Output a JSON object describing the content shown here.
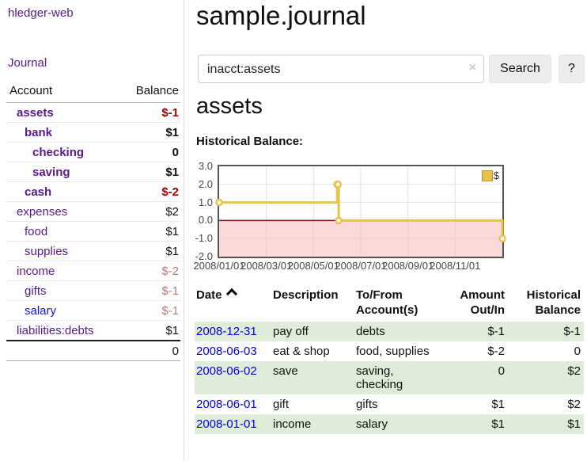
{
  "app": {
    "title": "hledger-web"
  },
  "colors": {
    "purple": "#551a8b",
    "blue": "#1414d6",
    "date_blue": "#0000e0",
    "negative": "#a40000",
    "negative_muted": "#b97a7a",
    "row_stripe": "#dfecd9",
    "chart_line": "#e9c248",
    "chart_negative_region": "#f6b9b9",
    "chart_zero_line": "#7d1010",
    "chart_grid": "#e2e2e2"
  },
  "sidebar": {
    "journal_link": "Journal",
    "accounts_table": {
      "account_header": "Account",
      "balance_header": "Balance",
      "rows": [
        {
          "account": "assets",
          "balance": "$-1",
          "level": 1,
          "bold": true,
          "link_color": "purple",
          "balance_color": "negative"
        },
        {
          "account": "bank",
          "balance": "$1",
          "level": 2,
          "bold": true,
          "link_color": "purple",
          "balance_color": "normal"
        },
        {
          "account": "checking",
          "balance": "0",
          "level": 3,
          "bold": true,
          "link_color": "purple",
          "balance_color": "normal"
        },
        {
          "account": "saving",
          "balance": "$1",
          "level": 3,
          "bold": true,
          "link_color": "purple",
          "balance_color": "normal"
        },
        {
          "account": "cash",
          "balance": "$-2",
          "level": 2,
          "bold": true,
          "link_color": "purple",
          "balance_color": "negative"
        },
        {
          "account": "expenses",
          "balance": "$2",
          "level": 1,
          "bold": false,
          "link_color": "purple",
          "balance_color": "normal"
        },
        {
          "account": "food",
          "balance": "$1",
          "level": 2,
          "bold": false,
          "link_color": "purple",
          "balance_color": "normal"
        },
        {
          "account": "supplies",
          "balance": "$1",
          "level": 2,
          "bold": false,
          "link_color": "purple",
          "balance_color": "normal"
        },
        {
          "account": "income",
          "balance": "$-2",
          "level": 1,
          "bold": false,
          "link_color": "purple",
          "balance_color": "negative-muted"
        },
        {
          "account": "gifts",
          "balance": "$-1",
          "level": 2,
          "bold": false,
          "link_color": "purple",
          "balance_color": "negative-muted"
        },
        {
          "account": "salary",
          "balance": "$-1",
          "level": 2,
          "bold": false,
          "link_color": "blue",
          "balance_color": "negative-muted"
        },
        {
          "account": "liabilities:debts",
          "balance": "$1",
          "level": 1,
          "bold": false,
          "link_color": "purple",
          "balance_color": "normal"
        }
      ],
      "total": "0"
    }
  },
  "main": {
    "page_title": "sample.journal",
    "search": {
      "value": "inacct:assets",
      "clear_icon": "×",
      "search_button": "Search",
      "help_button": "?"
    },
    "account_heading": "assets",
    "chart_title": "Historical Balance:",
    "register": {
      "headers": {
        "date": "Date",
        "sort_icon": "chevron-up",
        "description": "Description",
        "tofrom": "To/From Account(s)",
        "amount": "Amount Out/In",
        "balance": "Historical Balance"
      },
      "rows": [
        {
          "date": "2008-12-31",
          "description": "pay off",
          "accounts": "debts",
          "amount": "$-1",
          "amount_negative": true,
          "balance": "$-1",
          "balance_negative": true,
          "shaded": true
        },
        {
          "date": "2008-06-03",
          "description": "eat & shop",
          "accounts": "food, supplies",
          "amount": "$-2",
          "amount_negative": true,
          "balance": "0",
          "balance_negative": false,
          "shaded": false
        },
        {
          "date": "2008-06-02",
          "description": "save",
          "accounts": "saving,\nchecking",
          "amount": "0",
          "amount_negative": false,
          "balance": "$2",
          "balance_negative": false,
          "shaded": true
        },
        {
          "date": "2008-06-01",
          "description": "gift",
          "accounts": "gifts",
          "amount": "$1",
          "amount_negative": false,
          "balance": "$2",
          "balance_negative": false,
          "shaded": false
        },
        {
          "date": "2008-01-01",
          "description": "income",
          "accounts": "salary",
          "amount": "$1",
          "amount_negative": false,
          "balance": "$1",
          "balance_negative": false,
          "shaded": true
        }
      ]
    }
  },
  "chart_data": {
    "type": "line",
    "title": "Historical Balance",
    "legend": [
      {
        "label": "$",
        "color": "#e9c248"
      }
    ],
    "series": [
      {
        "name": "$",
        "step": true,
        "points": [
          {
            "date": "2008-01-01",
            "value": 1
          },
          {
            "date": "2008-06-01",
            "value": 2
          },
          {
            "date": "2008-06-02",
            "value": 2
          },
          {
            "date": "2008-06-03",
            "value": 0
          },
          {
            "date": "2008-12-31",
            "value": -1
          }
        ]
      }
    ],
    "x_ticks": [
      "2008/01/01",
      "2008/03/01",
      "2008/05/01",
      "2008/07/01",
      "2008/09/01",
      "2008/11/01"
    ],
    "y_ticks": [
      "3.0",
      "2.0",
      "1.0",
      "0.0",
      "-1.0",
      "-2.0"
    ],
    "ylim": [
      -2,
      3
    ],
    "x_range_months": 12,
    "grid": true,
    "legend_position": "top-right",
    "negative_region_shaded": true
  }
}
